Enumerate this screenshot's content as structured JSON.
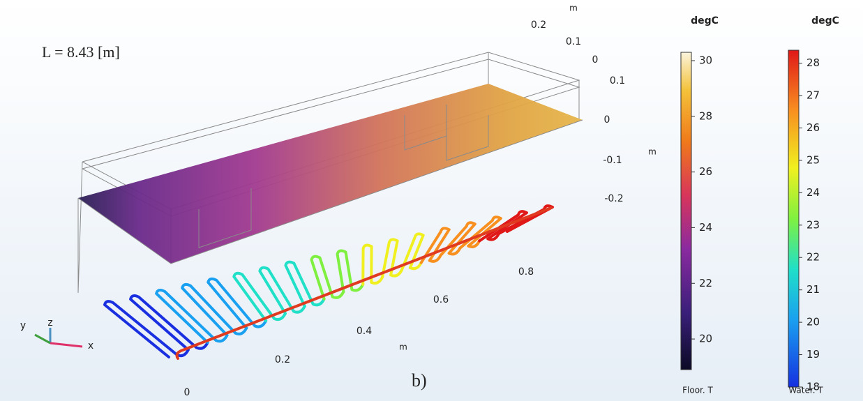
{
  "annotation": "L = 8.43 [m]",
  "panel_label": "b)",
  "axes": {
    "y": {
      "label": "m",
      "ticks": [
        0.2,
        0.1,
        0
      ]
    },
    "z": {
      "label": "m",
      "ticks": [
        0.1,
        0,
        -0.1,
        -0.2
      ]
    },
    "x": {
      "label": "m",
      "ticks": [
        0,
        0.2,
        0.4,
        0.6,
        0.8
      ]
    }
  },
  "triad": [
    "y",
    "z",
    "x"
  ],
  "colorbars": [
    {
      "title": "degC",
      "label": "Floor. T",
      "range": [
        18.9,
        30.3
      ],
      "ticks": [
        20,
        22,
        24,
        26,
        28,
        30
      ]
    },
    {
      "title": "degC",
      "label": "Water. T",
      "range": [
        18,
        28.4
      ],
      "ticks": [
        18,
        19,
        20,
        21,
        22,
        23,
        24,
        25,
        26,
        27,
        28
      ]
    }
  ]
}
